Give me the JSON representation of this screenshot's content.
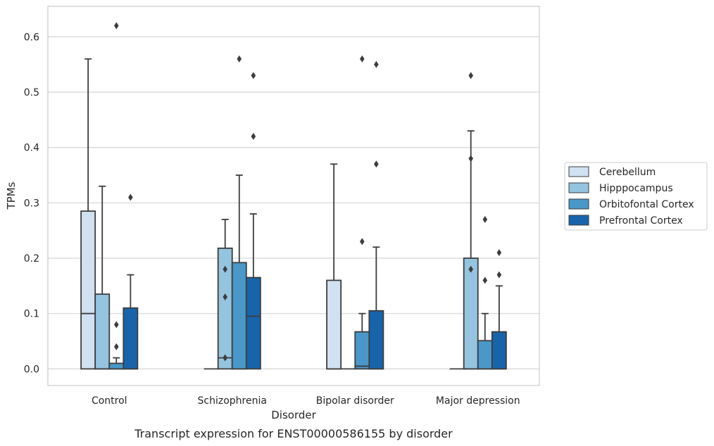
{
  "chart_data": {
    "type": "box",
    "caption": "Transcript expression for ENST00000586155 by disorder",
    "xlabel": "Disorder",
    "ylabel": "TPMs",
    "ylim": [
      -0.03,
      0.655
    ],
    "yticks": [
      0.0,
      0.1,
      0.2,
      0.3,
      0.4,
      0.5,
      0.6
    ],
    "ytick_labels": [
      "0.0",
      "0.1",
      "0.2",
      "0.3",
      "0.4",
      "0.5",
      "0.6"
    ],
    "grid": "horizontal",
    "legend_position": "right",
    "categories": [
      "Control",
      "Schizophrenia",
      "Bipolar disorder",
      "Major depression"
    ],
    "series": [
      {
        "name": "Cerebellum",
        "color": "#d0e1f2",
        "boxes": [
          {
            "q1": 0.0,
            "median": 0.1,
            "q3": 0.285,
            "whisker_low": 0.0,
            "whisker_high": 0.56,
            "outliers": []
          },
          {
            "q1": 0.0,
            "median": 0.0,
            "q3": 0.0,
            "whisker_low": 0.0,
            "whisker_high": 0.0,
            "outliers": []
          },
          {
            "q1": 0.0,
            "median": 0.0,
            "q3": 0.16,
            "whisker_low": 0.0,
            "whisker_high": 0.37,
            "outliers": []
          },
          {
            "q1": 0.0,
            "median": 0.0,
            "q3": 0.0,
            "whisker_low": 0.0,
            "whisker_high": 0.0,
            "outliers": []
          }
        ]
      },
      {
        "name": "Hipppocampus",
        "color": "#94c4df",
        "boxes": [
          {
            "q1": 0.0,
            "median": 0.0,
            "q3": 0.135,
            "whisker_low": 0.0,
            "whisker_high": 0.33,
            "outliers": []
          },
          {
            "q1": 0.0,
            "median": 0.02,
            "q3": 0.218,
            "whisker_low": 0.0,
            "whisker_high": 0.27,
            "outliers": [
              0.02,
              0.13,
              0.18
            ]
          },
          {
            "q1": 0.0,
            "median": 0.0,
            "q3": 0.0,
            "whisker_low": 0.0,
            "whisker_high": 0.0,
            "outliers": []
          },
          {
            "q1": 0.0,
            "median": 0.0,
            "q3": 0.2,
            "whisker_low": 0.0,
            "whisker_high": 0.43,
            "outliers": [
              0.18,
              0.38,
              0.53
            ]
          }
        ]
      },
      {
        "name": "Orbitofontal Cortex",
        "color": "#4a98c9",
        "boxes": [
          {
            "q1": 0.0,
            "median": 0.0,
            "q3": 0.01,
            "whisker_low": 0.0,
            "whisker_high": 0.02,
            "outliers": [
              0.04,
              0.08,
              0.62
            ]
          },
          {
            "q1": 0.0,
            "median": 0.0,
            "q3": 0.192,
            "whisker_low": 0.0,
            "whisker_high": 0.35,
            "outliers": [
              0.56
            ]
          },
          {
            "q1": 0.0,
            "median": 0.005,
            "q3": 0.067,
            "whisker_low": 0.0,
            "whisker_high": 0.1,
            "outliers": [
              0.23,
              0.56
            ]
          },
          {
            "q1": 0.0,
            "median": 0.0,
            "q3": 0.051,
            "whisker_low": 0.0,
            "whisker_high": 0.1,
            "outliers": [
              0.16,
              0.27
            ]
          }
        ]
      },
      {
        "name": "Prefrontal Cortex",
        "color": "#1764ab",
        "boxes": [
          {
            "q1": 0.0,
            "median": 0.0,
            "q3": 0.11,
            "whisker_low": 0.0,
            "whisker_high": 0.17,
            "outliers": [
              0.31
            ]
          },
          {
            "q1": 0.0,
            "median": 0.095,
            "q3": 0.165,
            "whisker_low": 0.0,
            "whisker_high": 0.28,
            "outliers": [
              0.42,
              0.53
            ]
          },
          {
            "q1": 0.0,
            "median": 0.0,
            "q3": 0.105,
            "whisker_low": 0.0,
            "whisker_high": 0.22,
            "outliers": [
              0.37,
              0.55
            ]
          },
          {
            "q1": 0.0,
            "median": 0.0,
            "q3": 0.067,
            "whisker_low": 0.0,
            "whisker_high": 0.15,
            "outliers": [
              0.17,
              0.21
            ]
          }
        ]
      }
    ]
  }
}
